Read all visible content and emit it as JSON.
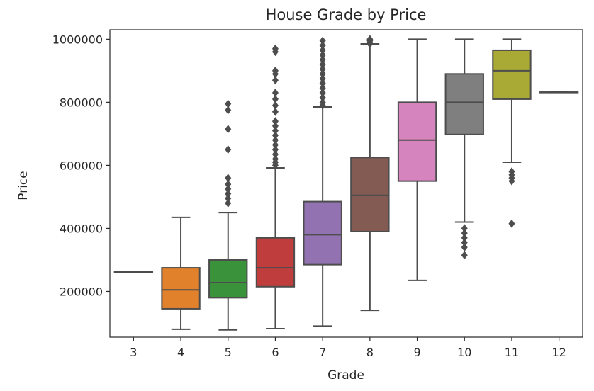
{
  "chart_data": {
    "type": "box",
    "title": "House Grade by Price",
    "xlabel": "Grade",
    "ylabel": "Price",
    "categories": [
      "3",
      "4",
      "5",
      "6",
      "7",
      "8",
      "9",
      "10",
      "11",
      "12"
    ],
    "ylim": [
      55000,
      1030000
    ],
    "yticks": [
      200000,
      400000,
      600000,
      800000,
      1000000
    ],
    "ytick_labels": [
      "200000",
      "400000",
      "600000",
      "800000",
      "1000000"
    ],
    "grid": false,
    "legend": "none",
    "boxes": [
      {
        "grade": "3",
        "color": "#3274a1",
        "whisker_low": 262000,
        "q1": 262000,
        "median": 262000,
        "q3": 262000,
        "whisker_high": 262000,
        "outliers": []
      },
      {
        "grade": "4",
        "color": "#e1812c",
        "whisker_low": 80000,
        "q1": 145000,
        "median": 205000,
        "q3": 275000,
        "whisker_high": 435000,
        "outliers": []
      },
      {
        "grade": "5",
        "color": "#3a923a",
        "whisker_low": 78000,
        "q1": 180000,
        "median": 228000,
        "q3": 300000,
        "whisker_high": 450000,
        "outliers": [
          480000,
          495000,
          510000,
          525000,
          540000,
          560000,
          650000,
          715000,
          775000,
          795000
        ]
      },
      {
        "grade": "6",
        "color": "#c03d3e",
        "whisker_low": 82000,
        "q1": 215000,
        "median": 275000,
        "q3": 370000,
        "whisker_high": 592000,
        "outliers": [
          600000,
          610000,
          620000,
          635000,
          650000,
          665000,
          680000,
          695000,
          710000,
          725000,
          740000,
          770000,
          790000,
          810000,
          830000,
          870000,
          890000,
          900000,
          960000,
          970000
        ]
      },
      {
        "grade": "7",
        "color": "#9372b2",
        "whisker_low": 90000,
        "q1": 285000,
        "median": 380000,
        "q3": 485000,
        "whisker_high": 785000,
        "outliers": [
          790000,
          800000,
          815000,
          830000,
          845000,
          860000,
          875000,
          890000,
          905000,
          920000,
          935000,
          950000,
          965000,
          980000,
          995000
        ]
      },
      {
        "grade": "8",
        "color": "#845b53",
        "whisker_low": 140000,
        "q1": 390000,
        "median": 505000,
        "q3": 625000,
        "whisker_high": 985000,
        "outliers": [
          985000,
          990000,
          995000,
          1000000
        ]
      },
      {
        "grade": "9",
        "color": "#d684bd",
        "whisker_low": 235000,
        "q1": 550000,
        "median": 680000,
        "q3": 800000,
        "whisker_high": 1000000,
        "outliers": []
      },
      {
        "grade": "10",
        "color": "#7f7f7f",
        "whisker_low": 420000,
        "q1": 698000,
        "median": 800000,
        "q3": 890000,
        "whisker_high": 1000000,
        "outliers": [
          315000,
          340000,
          355000,
          370000,
          385000,
          400000
        ]
      },
      {
        "grade": "11",
        "color": "#a9aa35",
        "whisker_low": 610000,
        "q1": 810000,
        "median": 900000,
        "q3": 965000,
        "whisker_high": 1000000,
        "outliers": [
          415000,
          550000,
          560000,
          570000,
          580000
        ]
      },
      {
        "grade": "12",
        "color": "#2e9fb4",
        "whisker_low": 832000,
        "q1": 832000,
        "median": 832000,
        "q3": 832000,
        "whisker_high": 832000,
        "outliers": []
      }
    ]
  }
}
